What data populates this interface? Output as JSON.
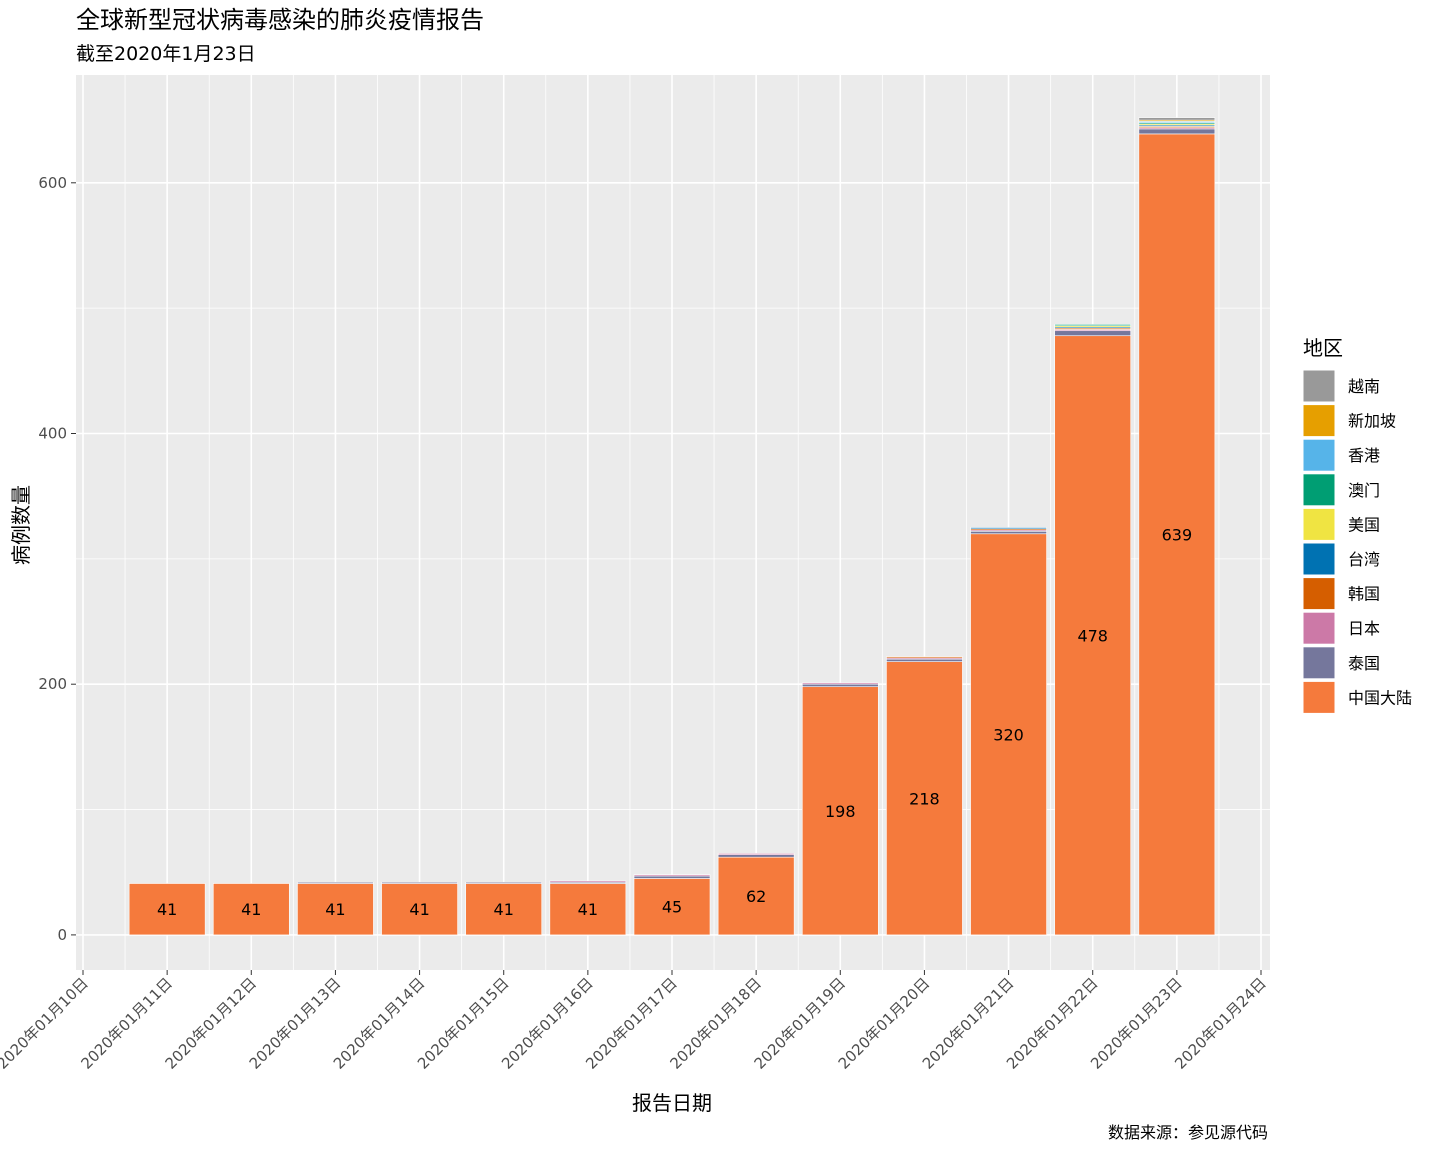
{
  "chart_data": {
    "type": "stacked_bar",
    "title": "全球新型冠状病毒感染的肺炎疫情报告",
    "subtitle": "截至2020年1月23日",
    "x_label": "报告日期",
    "y_label": "病例数量",
    "caption": "数据来源：参见源代码",
    "legend_title": "地区",
    "categories": [
      "2020年01月10日",
      "2020年01月11日",
      "2020年01月12日",
      "2020年01月13日",
      "2020年01月14日",
      "2020年01月15日",
      "2020年01月16日",
      "2020年01月17日",
      "2020年01月18日",
      "2020年01月19日",
      "2020年01月20日",
      "2020年01月21日",
      "2020年01月22日",
      "2020年01月23日",
      "2020年01月24日"
    ],
    "series": [
      {
        "name": "中国大陆",
        "color": "#F57A3C",
        "values": [
          null,
          41,
          41,
          41,
          41,
          41,
          41,
          45,
          62,
          198,
          218,
          320,
          478,
          639,
          null
        ],
        "labels": true
      },
      {
        "name": "泰国",
        "color": "#75779C",
        "values": [
          null,
          0,
          0,
          1,
          1,
          1,
          1,
          2,
          2,
          2,
          2,
          2,
          4,
          4,
          null
        ]
      },
      {
        "name": "日本",
        "color": "#CC79A7",
        "values": [
          null,
          0,
          0,
          0,
          0,
          0,
          1,
          1,
          1,
          1,
          1,
          1,
          1,
          1,
          null
        ]
      },
      {
        "name": "韩国",
        "color": "#D55E00",
        "values": [
          null,
          0,
          0,
          0,
          0,
          0,
          0,
          0,
          0,
          0,
          1,
          1,
          1,
          1,
          null
        ]
      },
      {
        "name": "台湾",
        "color": "#0072B2",
        "values": [
          null,
          0,
          0,
          0,
          0,
          0,
          0,
          0,
          0,
          0,
          0,
          1,
          1,
          1,
          null
        ]
      },
      {
        "name": "美国",
        "color": "#F0E442",
        "values": [
          null,
          0,
          0,
          0,
          0,
          0,
          0,
          0,
          0,
          0,
          0,
          0,
          1,
          1,
          null
        ]
      },
      {
        "name": "澳门",
        "color": "#009E73",
        "values": [
          null,
          0,
          0,
          0,
          0,
          0,
          0,
          0,
          0,
          0,
          0,
          0,
          1,
          1,
          null
        ]
      },
      {
        "name": "香港",
        "color": "#56B4E9",
        "values": [
          null,
          0,
          0,
          0,
          0,
          0,
          0,
          0,
          0,
          0,
          0,
          0,
          0,
          1,
          null
        ]
      },
      {
        "name": "新加坡",
        "color": "#E69F00",
        "values": [
          null,
          0,
          0,
          0,
          0,
          0,
          0,
          0,
          0,
          0,
          0,
          0,
          0,
          1,
          null
        ]
      },
      {
        "name": "越南",
        "color": "#999999",
        "values": [
          null,
          0,
          0,
          0,
          0,
          0,
          0,
          0,
          0,
          0,
          0,
          0,
          0,
          2,
          null
        ]
      }
    ],
    "ylim": [
      -28,
      686
    ],
    "yticks": [
      0,
      200,
      400,
      600
    ],
    "minor_yticks": [
      100,
      300,
      500
    ],
    "grid": true
  }
}
